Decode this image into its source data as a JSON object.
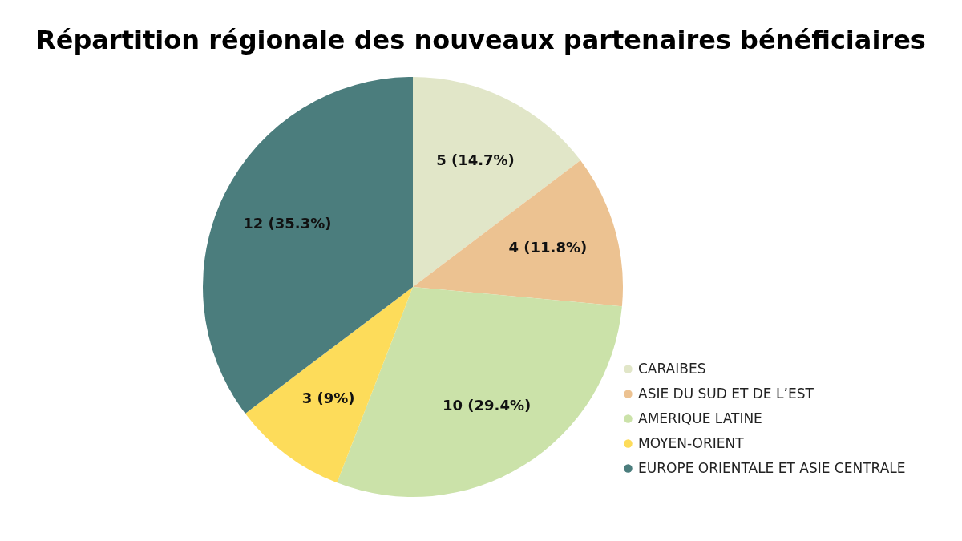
{
  "chart_data": {
    "type": "pie",
    "title": "Répartition régionale des nouveaux partenaires bénéficiaires",
    "categories": [
      "CARAIBES",
      "ASIE DU SUD ET DE L’EST",
      "AMERIQUE LATINE",
      "MOYEN-ORIENT",
      "EUROPE ORIENTALE ET ASIE CENTRALE"
    ],
    "values": [
      5,
      4,
      10,
      3,
      12
    ],
    "value_labels": [
      "5 (14.7%)",
      "4 (11.8%)",
      "10 (29.4%)",
      "3 (9%)",
      "12 (35.3%)"
    ],
    "colors": [
      "#e1e6c8",
      "#ecc291",
      "#cbe2a9",
      "#fddc5a",
      "#4b7d7d"
    ],
    "legend": "bottom right"
  }
}
